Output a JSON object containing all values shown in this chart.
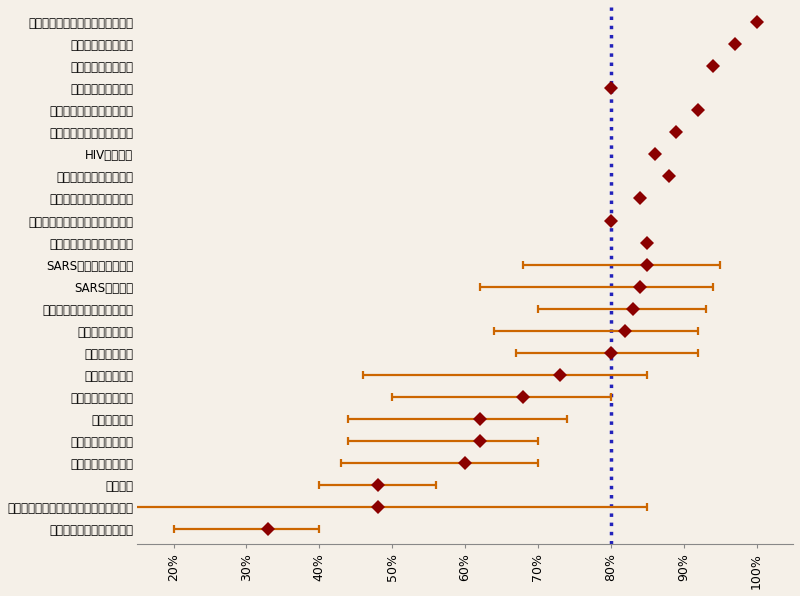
{
  "labels": [
    "細菌による性感染症（フランス）",
    "住血吸虫症（マリ）",
    "住血吸虫症（マリ）",
    "住血吸虫症（マリ）",
    "住血吸虫症（ジンバブエ）",
    "住血吸虫症（ジンバブエ）",
    "HIV（英国）",
    "マラリア（タンザニア）",
    "マラリア（ニューギニア）",
    "マラリア（アフリカ・サバンナ）",
    "シャーガス病（ブラジル）",
    "SARS（シンガポール）",
    "SARS（北京）",
    "ダニ媒介性脳炎（イタリア）",
    "麻しん（カナダ）",
    "麻しん（米国）",
    "水痘（ベナン）",
    "水痘（ヨーロッパ）",
    "水痘（英国）",
    "水痘（パキスタン）",
    "サル痘（ザイール）",
    "肺ペスト",
    "ハンタウイルス感染症（アルゼンチン）",
    "エボラ出血熱（ウガンダ）"
  ],
  "values": [
    100,
    97,
    94,
    80,
    92,
    89,
    86,
    88,
    84,
    80,
    85,
    85,
    84,
    83,
    82,
    80,
    73,
    68,
    62,
    62,
    60,
    48,
    48,
    33
  ],
  "xerr_low": [
    0,
    0,
    0,
    0,
    0,
    0,
    0,
    0,
    0,
    0,
    0,
    17,
    22,
    13,
    18,
    13,
    27,
    18,
    18,
    18,
    17,
    8,
    38,
    13
  ],
  "xerr_high": [
    0,
    0,
    0,
    0,
    0,
    0,
    0,
    0,
    0,
    0,
    0,
    10,
    10,
    10,
    10,
    12,
    12,
    12,
    12,
    8,
    10,
    8,
    37,
    7
  ],
  "dot_color": "#8B0000",
  "errorbar_color": "#CC6600",
  "vline_x": 80,
  "vline_color": "#2222BB",
  "bg_color": "#F5F0E8",
  "xlim": [
    15,
    105
  ],
  "xticks": [
    20,
    30,
    40,
    50,
    60,
    70,
    80,
    90,
    100
  ],
  "xtick_labels": [
    "20%",
    "30%",
    "40%",
    "50%",
    "60%",
    "70%",
    "80%",
    "90%",
    "100%"
  ]
}
